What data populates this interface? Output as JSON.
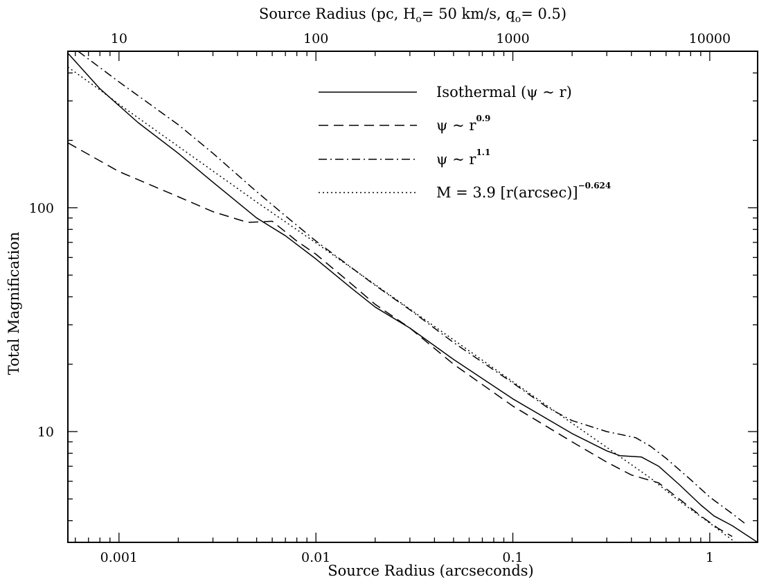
{
  "chart_data": {
    "type": "line",
    "xlabel": "Source Radius (arcseconds)",
    "ylabel": "Total Magnification",
    "top_axis_label": "Source Radius (pc, H",
    "top_axis_label_sub": "o",
    "top_axis_label_mid": "= 50 km/s,  q",
    "top_axis_label_sub2": "o",
    "top_axis_label_end": "= 0.5)",
    "x_scale": "log",
    "y_scale": "log",
    "xlim": [
      0.00055,
      1.75
    ],
    "ylim": [
      3.2,
      500
    ],
    "x_ticks": [
      {
        "value": 0.001,
        "label": "0.001"
      },
      {
        "value": 0.01,
        "label": "0.01"
      },
      {
        "value": 0.1,
        "label": "0.1"
      },
      {
        "value": 1,
        "label": "1"
      }
    ],
    "y_ticks": [
      {
        "value": 10,
        "label": "10"
      },
      {
        "value": 100,
        "label": "100"
      }
    ],
    "top_ticks": [
      {
        "pc": 10,
        "arcsec": 0.001,
        "label": "10"
      },
      {
        "pc": 100,
        "arcsec": 0.01,
        "label": "100"
      },
      {
        "pc": 1000,
        "arcsec": 0.1,
        "label": "1000"
      },
      {
        "pc": 10000,
        "arcsec": 1.0,
        "label": "10000"
      }
    ],
    "grid": false,
    "legend_position": "top-right",
    "legend": [
      {
        "label": "Isothermal (ψ ~ r)",
        "sup": ""
      },
      {
        "label": "ψ ~ r",
        "sup": "0.9"
      },
      {
        "label": "ψ ~ r",
        "sup": "1.1"
      },
      {
        "label": "M = 3.9 [r(arcsec)]",
        "sup": "−0.624"
      }
    ],
    "series": [
      {
        "style": "solid",
        "x": [
          0.00055,
          0.0008,
          0.00125,
          0.002,
          0.003,
          0.005,
          0.007,
          0.01,
          0.015,
          0.02,
          0.03,
          0.05,
          0.1,
          0.2,
          0.3,
          0.35,
          0.45,
          0.55,
          0.7,
          0.9,
          1.05,
          1.3,
          1.75
        ],
        "y": [
          490,
          340,
          240,
          175,
          130,
          90,
          75,
          59,
          44,
          36,
          29,
          21,
          14,
          9.8,
          8.2,
          7.8,
          7.7,
          7.0,
          5.8,
          4.7,
          4.2,
          3.8,
          3.2
        ]
      },
      {
        "style": "dashed",
        "x": [
          0.00055,
          0.001,
          0.002,
          0.003,
          0.0045,
          0.006,
          0.008,
          0.01,
          0.015,
          0.02,
          0.03,
          0.05,
          0.1,
          0.2,
          0.3,
          0.4,
          0.55,
          0.7,
          0.9,
          1.1,
          1.3
        ],
        "y": [
          195,
          145,
          112,
          96,
          86,
          87,
          71,
          62,
          46,
          37,
          29,
          20,
          13,
          9.0,
          7.3,
          6.4,
          5.9,
          5.0,
          4.2,
          3.7,
          3.4
        ]
      },
      {
        "style": "dashdot",
        "x": [
          0.00062,
          0.001,
          0.002,
          0.003,
          0.005,
          0.007,
          0.01,
          0.02,
          0.03,
          0.05,
          0.1,
          0.15,
          0.2,
          0.3,
          0.42,
          0.5,
          0.6,
          0.8,
          1.0,
          1.3,
          1.5
        ],
        "y": [
          500,
          365,
          235,
          175,
          118,
          92,
          71,
          45,
          35,
          25,
          16.5,
          12.8,
          11.2,
          10.0,
          9.4,
          8.6,
          7.6,
          6.1,
          5.1,
          4.3,
          3.9
        ]
      },
      {
        "style": "dotted",
        "x": [
          0.00055,
          0.0008,
          0.001,
          0.002,
          0.005,
          0.01,
          0.02,
          0.05,
          0.1,
          0.2,
          0.3,
          0.5,
          0.7,
          1.0,
          1.35
        ],
        "y": [
          425,
          336,
          290,
          188,
          106,
          69.7,
          45.3,
          25.7,
          16.7,
          10.9,
          8.5,
          6.2,
          4.9,
          3.9,
          3.2
        ]
      }
    ]
  }
}
